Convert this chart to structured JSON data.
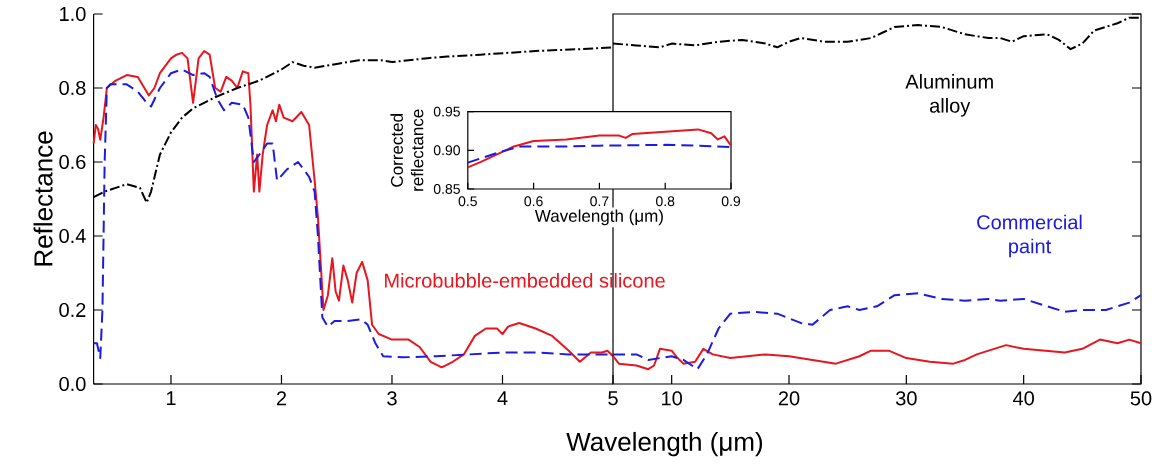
{
  "chart_data": [
    {
      "type": "line",
      "xlabel": "Wavelength (μm)",
      "ylabel": "Reflectance",
      "xlim": [
        0.3,
        5
      ],
      "ylim": [
        0,
        1
      ],
      "xticks": [
        1,
        2,
        3,
        4
      ],
      "yticks": [
        {
          "value": 0,
          "label": "0.0"
        },
        0.2,
        0.4,
        0.6,
        0.8,
        {
          "value": 1,
          "label": "1.0"
        }
      ],
      "series": [
        {
          "name": "Microbubble-embedded silicone",
          "color": "#e8161e",
          "line_style": "solid",
          "x": [
            0.3,
            0.32,
            0.34,
            0.36,
            0.39,
            0.42,
            0.5,
            0.6,
            0.7,
            0.8,
            0.85,
            0.9,
            1.0,
            1.05,
            1.1,
            1.15,
            1.2,
            1.25,
            1.3,
            1.35,
            1.4,
            1.45,
            1.5,
            1.55,
            1.6,
            1.65,
            1.7,
            1.72,
            1.75,
            1.78,
            1.8,
            1.83,
            1.87,
            1.92,
            1.95,
            1.98,
            2.02,
            2.1,
            2.18,
            2.25,
            2.3,
            2.33,
            2.38,
            2.42,
            2.46,
            2.49,
            2.52,
            2.56,
            2.6,
            2.64,
            2.68,
            2.73,
            2.78,
            2.82,
            2.88,
            3.0,
            3.15,
            3.25,
            3.35,
            3.45,
            3.55,
            3.65,
            3.75,
            3.85,
            3.95,
            4.0,
            4.05,
            4.15,
            4.3,
            4.45,
            4.6,
            4.7,
            4.8,
            4.9,
            4.95,
            5.0
          ],
          "values": [
            0.65,
            0.7,
            0.69,
            0.66,
            0.72,
            0.8,
            0.82,
            0.835,
            0.83,
            0.78,
            0.8,
            0.84,
            0.88,
            0.89,
            0.895,
            0.88,
            0.76,
            0.88,
            0.9,
            0.89,
            0.8,
            0.79,
            0.83,
            0.82,
            0.8,
            0.845,
            0.84,
            0.75,
            0.52,
            0.62,
            0.52,
            0.62,
            0.7,
            0.74,
            0.71,
            0.755,
            0.72,
            0.71,
            0.735,
            0.7,
            0.55,
            0.45,
            0.2,
            0.24,
            0.34,
            0.25,
            0.225,
            0.32,
            0.28,
            0.22,
            0.3,
            0.33,
            0.28,
            0.16,
            0.135,
            0.12,
            0.12,
            0.1,
            0.06,
            0.045,
            0.06,
            0.08,
            0.13,
            0.15,
            0.15,
            0.135,
            0.155,
            0.165,
            0.15,
            0.13,
            0.09,
            0.06,
            0.085,
            0.085,
            0.09,
            0.075
          ]
        },
        {
          "color": "#1c1ce0",
          "line_style": "dashed",
          "x": [
            0.3,
            0.33,
            0.36,
            0.38,
            0.4,
            0.42,
            0.45,
            0.6,
            0.7,
            0.78,
            0.82,
            0.9,
            1.0,
            1.1,
            1.2,
            1.3,
            1.35,
            1.42,
            1.48,
            1.55,
            1.65,
            1.7,
            1.75,
            1.8,
            1.87,
            1.92,
            1.96,
            2.05,
            2.15,
            2.25,
            2.3,
            2.33,
            2.37,
            2.42,
            2.48,
            2.6,
            2.72,
            2.78,
            2.85,
            2.92,
            3.1,
            3.4,
            3.7,
            4.0,
            4.3,
            4.6,
            5.0
          ],
          "values": [
            0.11,
            0.11,
            0.07,
            0.2,
            0.6,
            0.8,
            0.81,
            0.81,
            0.79,
            0.76,
            0.75,
            0.8,
            0.84,
            0.85,
            0.835,
            0.84,
            0.83,
            0.77,
            0.74,
            0.76,
            0.755,
            0.72,
            0.6,
            0.62,
            0.65,
            0.65,
            0.55,
            0.58,
            0.6,
            0.56,
            0.52,
            0.4,
            0.18,
            0.155,
            0.17,
            0.17,
            0.175,
            0.16,
            0.11,
            0.075,
            0.072,
            0.075,
            0.08,
            0.085,
            0.085,
            0.08,
            0.08
          ]
        },
        {
          "color": "#000000",
          "line_style": "dashdot",
          "x": [
            0.3,
            0.4,
            0.6,
            0.72,
            0.78,
            0.82,
            0.9,
            1.0,
            1.1,
            1.2,
            1.3,
            1.4,
            1.6,
            1.8,
            1.9,
            2.0,
            2.1,
            2.2,
            2.3,
            2.5,
            2.7,
            2.9,
            3.0,
            3.3,
            3.5,
            3.8,
            4.3,
            4.7,
            5.0
          ],
          "values": [
            0.505,
            0.52,
            0.54,
            0.53,
            0.49,
            0.52,
            0.62,
            0.68,
            0.72,
            0.745,
            0.76,
            0.775,
            0.8,
            0.82,
            0.835,
            0.85,
            0.87,
            0.86,
            0.855,
            0.865,
            0.875,
            0.875,
            0.87,
            0.88,
            0.885,
            0.89,
            0.9,
            0.905,
            0.91
          ]
        }
      ]
    },
    {
      "type": "line",
      "xlim": [
        5,
        50
      ],
      "ylim": [
        0,
        1
      ],
      "xticks": [
        5,
        10,
        20,
        30,
        40,
        50
      ],
      "yticks": [
        0,
        0.2,
        0.4,
        0.6,
        0.8,
        1
      ],
      "tick_labels": "x",
      "series": [
        {
          "color": "#e8161e",
          "line_style": "solid",
          "x": [
            5,
            5.5,
            7,
            8,
            8.5,
            9,
            10,
            10.5,
            11,
            12,
            12.7,
            13.5,
            15,
            18,
            20,
            22,
            24,
            26,
            27,
            28.5,
            30,
            32,
            34,
            35,
            36,
            38.5,
            40,
            43.5,
            45,
            46.5,
            48,
            49,
            50
          ],
          "values": [
            0.075,
            0.055,
            0.05,
            0.04,
            0.05,
            0.095,
            0.09,
            0.07,
            0.055,
            0.06,
            0.095,
            0.08,
            0.07,
            0.08,
            0.075,
            0.065,
            0.055,
            0.075,
            0.09,
            0.09,
            0.07,
            0.06,
            0.055,
            0.065,
            0.08,
            0.105,
            0.095,
            0.085,
            0.095,
            0.12,
            0.11,
            0.12,
            0.11
          ]
        },
        {
          "name": "Commercial paint",
          "color": "#1c1ce0",
          "line_style": "dashed",
          "x": [
            5,
            7,
            8,
            10,
            11,
            12.2,
            13,
            14,
            15,
            17,
            19,
            21,
            22,
            23.5,
            25,
            26,
            27.5,
            29,
            31,
            33,
            35,
            37,
            38,
            40,
            42,
            43.5,
            45,
            47,
            49,
            50
          ],
          "values": [
            0.08,
            0.08,
            0.065,
            0.075,
            0.065,
            0.04,
            0.08,
            0.15,
            0.19,
            0.195,
            0.19,
            0.165,
            0.16,
            0.2,
            0.21,
            0.2,
            0.21,
            0.24,
            0.245,
            0.23,
            0.225,
            0.23,
            0.225,
            0.23,
            0.21,
            0.195,
            0.2,
            0.2,
            0.22,
            0.24
          ]
        },
        {
          "name": "Aluminum alloy",
          "color": "#000000",
          "line_style": "dashdot",
          "x": [
            5,
            7,
            9,
            10,
            12,
            14,
            16,
            18,
            19,
            20,
            21,
            23,
            25,
            27,
            28,
            29,
            31,
            33,
            35,
            37,
            38,
            39,
            40,
            42,
            43,
            44,
            45,
            46,
            48,
            49,
            50
          ],
          "values": [
            0.92,
            0.915,
            0.91,
            0.92,
            0.915,
            0.925,
            0.93,
            0.92,
            0.91,
            0.925,
            0.935,
            0.925,
            0.925,
            0.935,
            0.95,
            0.965,
            0.97,
            0.965,
            0.945,
            0.935,
            0.935,
            0.925,
            0.94,
            0.945,
            0.93,
            0.905,
            0.92,
            0.955,
            0.975,
            0.99,
            0.99
          ]
        }
      ]
    },
    {
      "type": "line",
      "xlabel": "Wavelength (μm)",
      "ylabel": "Corrected reflectance",
      "xlim": [
        0.5,
        0.9
      ],
      "ylim": [
        0.85,
        0.95
      ],
      "xticks": [
        0.5,
        0.6,
        0.7,
        0.8,
        0.9
      ],
      "yticks": [
        0.85,
        {
          "value": 0.9,
          "label": "0.90"
        },
        0.95
      ],
      "series": [
        {
          "color": "#e8161e",
          "line_style": "solid",
          "x": [
            0.5,
            0.52,
            0.55,
            0.57,
            0.6,
            0.65,
            0.7,
            0.73,
            0.74,
            0.75,
            0.8,
            0.85,
            0.87,
            0.88,
            0.89,
            0.9
          ],
          "values": [
            0.878,
            0.885,
            0.897,
            0.905,
            0.912,
            0.914,
            0.919,
            0.919,
            0.916,
            0.921,
            0.924,
            0.927,
            0.922,
            0.914,
            0.918,
            0.906
          ]
        },
        {
          "color": "#1c1ce0",
          "line_style": "dashed",
          "x": [
            0.5,
            0.55,
            0.58,
            0.65,
            0.7,
            0.8,
            0.85,
            0.9
          ],
          "values": [
            0.884,
            0.898,
            0.905,
            0.905,
            0.906,
            0.907,
            0.906,
            0.904
          ]
        }
      ]
    }
  ]
}
